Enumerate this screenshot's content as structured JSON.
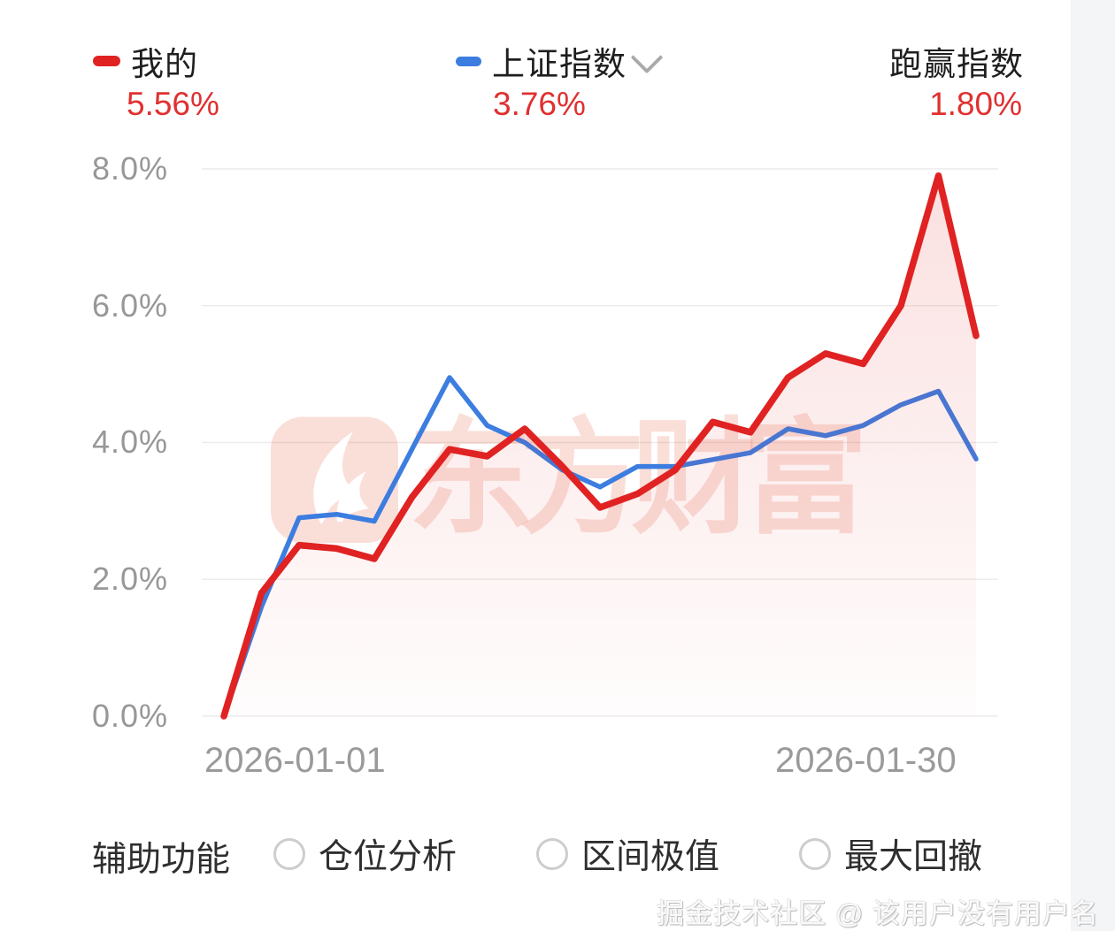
{
  "header": {
    "series1_label": "我的",
    "series1_value": "5.56%",
    "series2_label": "上证指数",
    "series2_value": "3.76%",
    "outperform_label": "跑赢指数",
    "outperform_value": "1.80%"
  },
  "chart_data": {
    "type": "line",
    "title": "",
    "xlabel": "",
    "ylabel": "",
    "ylim": [
      0,
      8
    ],
    "y_ticks": [
      "8.0%",
      "6.0%",
      "4.0%",
      "2.0%",
      "0.0%"
    ],
    "y_tick_values": [
      8,
      6,
      4,
      2,
      0
    ],
    "x_ticks": [
      "2026-01-01",
      "2026-01-30"
    ],
    "grid": "horizontal",
    "legend_position": "top",
    "series": [
      {
        "name": "我的",
        "color": "#e02222",
        "area_fill": true,
        "values": [
          0.0,
          1.8,
          2.5,
          2.45,
          2.3,
          3.2,
          3.9,
          3.8,
          4.2,
          3.65,
          3.05,
          3.25,
          3.6,
          4.3,
          4.15,
          4.95,
          5.3,
          5.15,
          6.0,
          7.9,
          5.56
        ]
      },
      {
        "name": "上证指数",
        "color": "#3c7de0",
        "area_fill": false,
        "values": [
          0.0,
          1.6,
          2.9,
          2.95,
          2.85,
          3.9,
          4.95,
          4.25,
          4.0,
          3.6,
          3.35,
          3.65,
          3.65,
          3.75,
          3.85,
          4.2,
          4.1,
          4.25,
          4.55,
          4.75,
          3.76
        ]
      }
    ]
  },
  "footer": {
    "label": "辅助功能",
    "options": [
      {
        "label": "仓位分析",
        "selected": false
      },
      {
        "label": "区间极值",
        "selected": false
      },
      {
        "label": "最大回撤",
        "selected": false
      }
    ]
  },
  "watermarks": {
    "chart_brand": "东方财富",
    "bottom": "掘金技术社区 @ 该用户没有用户名"
  },
  "colors": {
    "line_red": "#e02222",
    "line_blue": "#3c7de0",
    "value_red": "#e03030",
    "grid": "#ececec",
    "axis_text": "#979797"
  }
}
